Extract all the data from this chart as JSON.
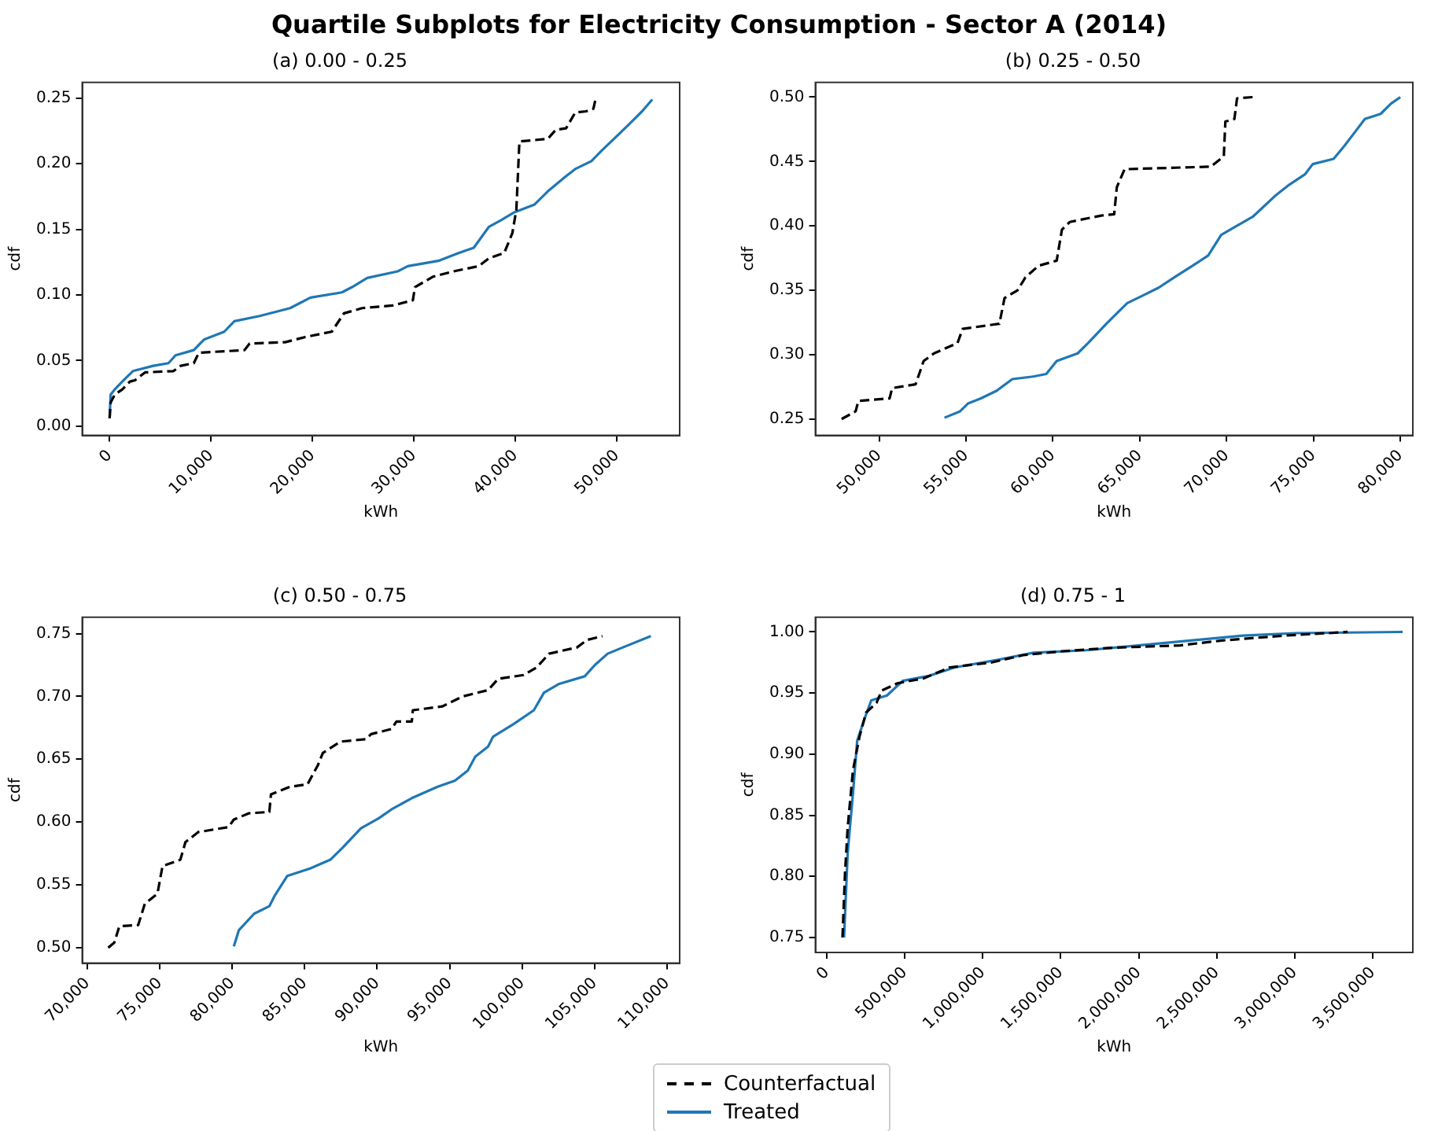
{
  "chart_data": [
    {
      "type": "line",
      "title": "Quartile Subplots for Electricity Consumption - Sector A (2014)",
      "subtitle": "(a) 0.00 - 0.25",
      "xlabel": "kWh",
      "ylabel": "cdf",
      "marker": "none",
      "legend": "bottom",
      "xlim": [
        -2700,
        56200
      ],
      "xticks": [
        0,
        {
          "value": 10000,
          "label": "10,000"
        },
        {
          "value": 20000,
          "label": "20,000"
        },
        {
          "value": 30000,
          "label": "30,000"
        },
        {
          "value": 40000,
          "label": "40,000"
        },
        {
          "value": 50000,
          "label": "50,000"
        }
      ],
      "ylim": [
        -0.007,
        0.262
      ],
      "yticks": [
        {
          "value": 0,
          "label": "0.00"
        },
        0.05,
        {
          "value": 0.1,
          "label": "0.10"
        },
        0.15,
        {
          "value": 0.2,
          "label": "0.20"
        },
        0.25
      ],
      "series": [
        {
          "name": "Counterfactual",
          "color": "#000000",
          "line_style": "dashed",
          "x": [
            0,
            100,
            500,
            1250,
            2000,
            2500,
            3500,
            6300,
            7000,
            8300,
            8800,
            13300,
            13800,
            17300,
            19300,
            21900,
            23100,
            24900,
            27900,
            29900,
            30100,
            31900,
            33900,
            36400,
            37400,
            38900,
            39700,
            40100,
            40400,
            43200,
            44000,
            45000,
            45900,
            47000,
            47700,
            47900
          ],
          "values": [
            0.006,
            0.018,
            0.024,
            0.028,
            0.034,
            0.035,
            0.041,
            0.042,
            0.046,
            0.048,
            0.056,
            0.058,
            0.063,
            0.064,
            0.068,
            0.072,
            0.086,
            0.09,
            0.092,
            0.096,
            0.106,
            0.114,
            0.118,
            0.122,
            0.128,
            0.132,
            0.147,
            0.165,
            0.217,
            0.219,
            0.226,
            0.227,
            0.239,
            0.24,
            0.242,
            0.249
          ]
        },
        {
          "name": "Treated",
          "color": "#1f77b4",
          "line_style": "solid",
          "x": [
            0,
            100,
            500,
            1500,
            2300,
            4300,
            5800,
            6500,
            8300,
            9300,
            11300,
            12300,
            14800,
            17800,
            19800,
            22900,
            23900,
            25400,
            28400,
            29400,
            32400,
            34400,
            35900,
            37400,
            38600,
            39900,
            41900,
            43200,
            44900,
            45900,
            47500,
            48500,
            50000,
            51200,
            52500,
            53500
          ],
          "values": [
            0.006,
            0.024,
            0.028,
            0.036,
            0.042,
            0.046,
            0.048,
            0.054,
            0.058,
            0.066,
            0.072,
            0.08,
            0.084,
            0.09,
            0.098,
            0.102,
            0.106,
            0.113,
            0.118,
            0.122,
            0.126,
            0.132,
            0.136,
            0.152,
            0.157,
            0.163,
            0.169,
            0.179,
            0.19,
            0.196,
            0.202,
            0.21,
            0.221,
            0.23,
            0.24,
            0.249
          ]
        }
      ]
    },
    {
      "type": "line",
      "title": "(b) 0.25 - 0.50",
      "xlabel": "kWh",
      "ylabel": "cdf",
      "marker": "none",
      "xlim": [
        46330,
        80720
      ],
      "xticks": [
        {
          "value": 50000,
          "label": "50,000"
        },
        {
          "value": 55000,
          "label": "55,000"
        },
        {
          "value": 60000,
          "label": "60,000"
        },
        {
          "value": 65000,
          "label": "65,000"
        },
        {
          "value": 70000,
          "label": "70,000"
        },
        {
          "value": 75000,
          "label": "75,000"
        },
        {
          "value": 80000,
          "label": "80,000"
        }
      ],
      "ylim": [
        0.2373,
        0.5114
      ],
      "yticks": [
        0.25,
        {
          "value": 0.3,
          "label": "0.30"
        },
        0.35,
        {
          "value": 0.4,
          "label": "0.40"
        },
        0.45,
        {
          "value": 0.5,
          "label": "0.50"
        }
      ],
      "series": [
        {
          "color": "#000000",
          "line_style": "dashed",
          "x": [
            47840,
            48650,
            48800,
            50600,
            50750,
            52100,
            52560,
            53160,
            54510,
            54810,
            56920,
            57220,
            57970,
            58420,
            59170,
            60220,
            60520,
            60970,
            62780,
            63530,
            63680,
            64130,
            69090,
            69840,
            69930,
            70450,
            70600,
            71500
          ],
          "values": [
            0.25,
            0.256,
            0.264,
            0.266,
            0.274,
            0.277,
            0.295,
            0.301,
            0.309,
            0.32,
            0.324,
            0.344,
            0.35,
            0.36,
            0.369,
            0.373,
            0.397,
            0.403,
            0.408,
            0.409,
            0.43,
            0.444,
            0.446,
            0.454,
            0.481,
            0.483,
            0.499,
            0.5
          ]
        },
        {
          "color": "#1f77b4",
          "line_style": "solid",
          "x": [
            53760,
            54660,
            55110,
            55860,
            56770,
            57670,
            58870,
            59620,
            60220,
            61430,
            62030,
            63080,
            64280,
            65190,
            66090,
            66990,
            68040,
            68940,
            69690,
            70450,
            71500,
            72850,
            73610,
            74510,
            74960,
            76160,
            76770,
            77510,
            77960,
            78870,
            79470,
            80000
          ],
          "values": [
            0.251,
            0.256,
            0.262,
            0.266,
            0.272,
            0.281,
            0.283,
            0.285,
            0.295,
            0.301,
            0.309,
            0.324,
            0.34,
            0.346,
            0.352,
            0.36,
            0.369,
            0.377,
            0.393,
            0.399,
            0.407,
            0.424,
            0.432,
            0.44,
            0.448,
            0.452,
            0.462,
            0.475,
            0.483,
            0.487,
            0.495,
            0.5
          ]
        }
      ]
    },
    {
      "type": "line",
      "title": "(c) 0.50 - 0.75",
      "xlabel": "kWh",
      "ylabel": "cdf",
      "marker": "none",
      "xlim": [
        69650,
        110870
      ],
      "xticks": [
        {
          "value": 70000,
          "label": "70,000"
        },
        {
          "value": 75000,
          "label": "75,000"
        },
        {
          "value": 80000,
          "label": "80,000"
        },
        {
          "value": 85000,
          "label": "85,000"
        },
        {
          "value": 90000,
          "label": "90,000"
        },
        {
          "value": 95000,
          "label": "95,000"
        },
        {
          "value": 100000,
          "label": "100,000"
        },
        {
          "value": 105000,
          "label": "105,000"
        },
        {
          "value": 110000,
          "label": "110,000"
        }
      ],
      "ylim": [
        0.4877,
        0.763
      ],
      "yticks": [
        {
          "value": 0.5,
          "label": "0.50"
        },
        0.55,
        {
          "value": 0.6,
          "label": "0.60"
        },
        0.65,
        {
          "value": 0.7,
          "label": "0.70"
        },
        0.75
      ],
      "series": [
        {
          "color": "#000000",
          "line_style": "dashed",
          "x": [
            71440,
            71860,
            72210,
            73510,
            73970,
            74840,
            75190,
            76420,
            76770,
            77650,
            79750,
            80110,
            81160,
            82560,
            82670,
            83970,
            85190,
            85900,
            86250,
            87470,
            89230,
            89580,
            90980,
            91330,
            92390,
            92460,
            94490,
            95900,
            97650,
            98350,
            100110,
            100990,
            101860,
            103790,
            104490,
            105540
          ],
          "values": [
            0.5,
            0.504,
            0.517,
            0.518,
            0.535,
            0.543,
            0.565,
            0.57,
            0.584,
            0.592,
            0.596,
            0.602,
            0.607,
            0.608,
            0.622,
            0.628,
            0.63,
            0.645,
            0.655,
            0.664,
            0.666,
            0.67,
            0.674,
            0.68,
            0.68,
            0.689,
            0.692,
            0.7,
            0.705,
            0.714,
            0.717,
            0.723,
            0.734,
            0.739,
            0.745,
            0.748
          ]
        },
        {
          "color": "#1f77b4",
          "line_style": "solid",
          "x": [
            80110,
            80460,
            81510,
            82560,
            82910,
            83790,
            85370,
            86770,
            87650,
            88880,
            90110,
            90980,
            92390,
            94140,
            95370,
            96250,
            96770,
            97650,
            98000,
            99410,
            100810,
            101510,
            102560,
            104320,
            105020,
            105900,
            106950,
            108880
          ],
          "values": [
            0.501,
            0.514,
            0.527,
            0.533,
            0.541,
            0.557,
            0.563,
            0.57,
            0.58,
            0.595,
            0.603,
            0.61,
            0.619,
            0.628,
            0.633,
            0.641,
            0.652,
            0.66,
            0.668,
            0.678,
            0.689,
            0.703,
            0.71,
            0.716,
            0.725,
            0.734,
            0.739,
            0.748
          ]
        }
      ]
    },
    {
      "type": "line",
      "title": "(d) 0.75 - 1",
      "xlabel": "kWh",
      "ylabel": "cdf",
      "marker": "none",
      "xlim": [
        -73000,
        3757000
      ],
      "xticks": [
        0,
        {
          "value": 500000,
          "label": "500,000"
        },
        {
          "value": 1000000,
          "label": "1,000,000"
        },
        {
          "value": 1500000,
          "label": "1,500,000"
        },
        {
          "value": 2000000,
          "label": "2,000,000"
        },
        {
          "value": 2500000,
          "label": "2,500,000"
        },
        {
          "value": 3000000,
          "label": "3,000,000"
        },
        {
          "value": 3500000,
          "label": "3,500,000"
        }
      ],
      "ylim": [
        0.7377,
        1.012
      ],
      "yticks": [
        0.75,
        {
          "value": 0.8,
          "label": "0.80"
        },
        0.85,
        {
          "value": 0.9,
          "label": "0.90"
        },
        0.95,
        {
          "value": 1,
          "label": "1.00"
        }
      ],
      "series": [
        {
          "color": "#000000",
          "line_style": "dashed",
          "x": [
            100700,
            117000,
            134000,
            168000,
            211000,
            252000,
            319000,
            352000,
            453000,
            621000,
            789000,
            1057000,
            1258000,
            1493000,
            1829000,
            2265000,
            2534000,
            2937000,
            3339000
          ],
          "values": [
            0.75,
            0.803,
            0.84,
            0.887,
            0.915,
            0.934,
            0.942,
            0.952,
            0.958,
            0.962,
            0.971,
            0.975,
            0.981,
            0.984,
            0.987,
            0.989,
            0.993,
            0.997,
            1.0
          ]
        },
        {
          "color": "#1f77b4",
          "line_style": "solid",
          "x": [
            110700,
            134000,
            168000,
            195000,
            245000,
            285000,
            386000,
            487000,
            654000,
            822000,
            1091000,
            1326000,
            1661000,
            1997000,
            2332000,
            2668000,
            3004000,
            3692000
          ],
          "values": [
            0.75,
            0.819,
            0.868,
            0.911,
            0.93,
            0.944,
            0.948,
            0.96,
            0.964,
            0.971,
            0.977,
            0.983,
            0.985,
            0.989,
            0.993,
            0.997,
            0.999,
            1.0
          ]
        }
      ]
    }
  ]
}
